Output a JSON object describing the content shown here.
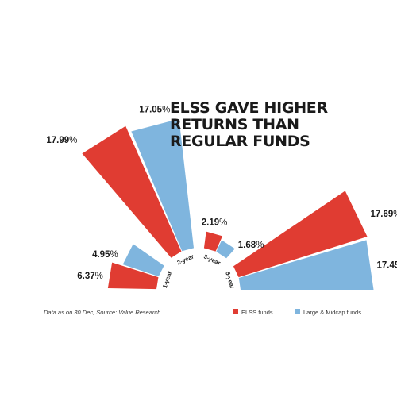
{
  "chart_data": {
    "type": "bar",
    "title_lines": [
      "ELSS GAVE HIGHER",
      "RETURNS THAN",
      "REGULAR FUNDS"
    ],
    "categories": [
      "1-year",
      "2-year",
      "3-year",
      "5-year"
    ],
    "series": [
      {
        "name": "ELSS funds",
        "values": [
          6.37,
          17.99,
          2.19,
          17.69
        ]
      },
      {
        "name": "Large & Midcap funds",
        "values": [
          4.95,
          17.05,
          1.68,
          17.45
        ]
      }
    ],
    "value_suffix": "%",
    "colors": {
      "elss": "#E03C32",
      "largemid": "#7FB5DE"
    },
    "note": "Data as on 30 Dec; Source: Value Research"
  }
}
